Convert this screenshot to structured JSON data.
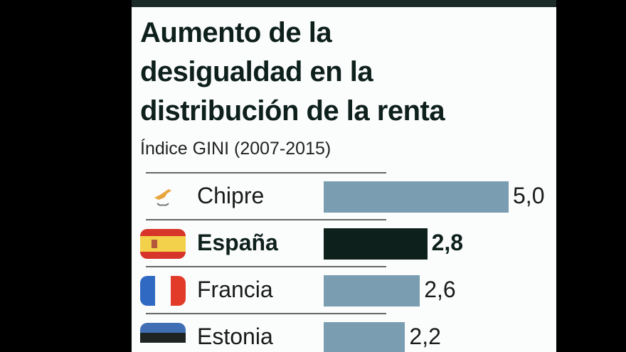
{
  "chart_data": {
    "type": "bar",
    "orientation": "horizontal",
    "title": "Aumento de la desigualdad en la distribución de la renta",
    "title_lines": [
      "Aumento de la",
      "desigualdad en la",
      "distribución de la renta"
    ],
    "subtitle": "Índice GINI (2007-2015)",
    "categories": [
      "Chipre",
      "España",
      "Francia",
      "Estonia"
    ],
    "values": [
      5.0,
      2.8,
      2.6,
      2.2
    ],
    "value_labels": [
      "5,0",
      "2,8",
      "2,6",
      "2,2"
    ],
    "highlight": "España",
    "flags": [
      "cyprus-flag-icon",
      "spain-flag-icon",
      "france-flag-icon",
      "estonia-flag-icon"
    ],
    "xlim": [
      0,
      5.0
    ]
  },
  "colors": {
    "bar": "#7a9db1",
    "highlight_bar": "#0e201c",
    "title": "#0e201c"
  }
}
